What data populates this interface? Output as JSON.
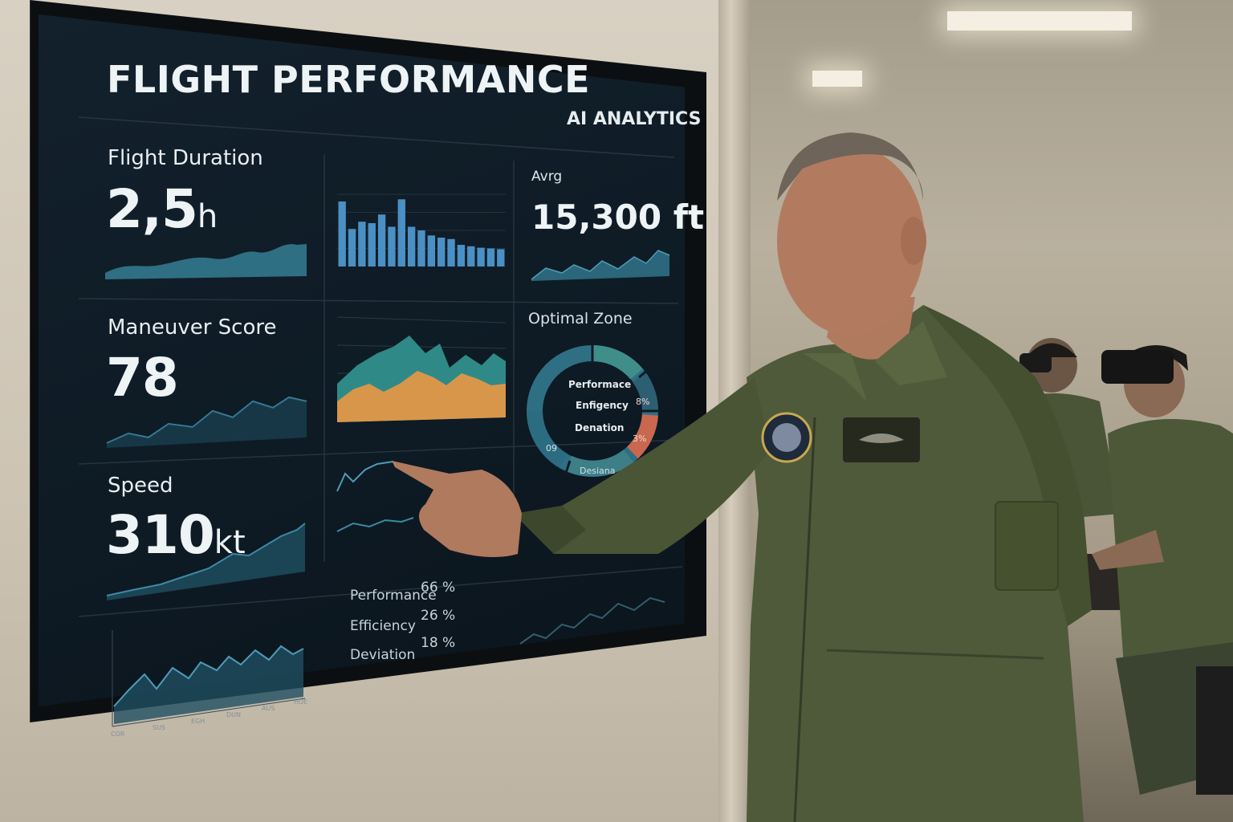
{
  "dashboard": {
    "title": "FLIGHT PERFORMANCE",
    "subtitle": "AI ANALYTICS",
    "flight_duration": {
      "label": "Flight Duration",
      "value": "2,5",
      "unit": "h"
    },
    "maneuver_score": {
      "label": "Maneuver Score",
      "value": "78"
    },
    "speed": {
      "label": "Speed",
      "value": "310",
      "unit": "kt"
    },
    "altitude": {
      "label": "Avrg",
      "value": "15,300 ft"
    },
    "zone": {
      "label": "Optimal Zone",
      "donut_text": [
        "Performace",
        "Enfigency",
        "Denation"
      ],
      "donut_bottom": "Desiana",
      "pct_left": "09",
      "pct_right_top": "8%",
      "pct_right_bottom": "3%"
    },
    "stats": [
      {
        "label": "Performance",
        "value": "66 %"
      },
      {
        "label": "Efficiency",
        "value": "26 %"
      },
      {
        "label": "Deviation",
        "value": "18 %"
      }
    ],
    "x_ticks": [
      "COR",
      "SUS",
      "EGH",
      "DUN",
      "AUS",
      "HUE"
    ],
    "colors": {
      "teal": "#2f6f84",
      "blue": "#4a90c4",
      "orange": "#d8964a",
      "red": "#c9684e",
      "green": "#3f8e8a"
    }
  },
  "bar_chart": {
    "values": [
      0.9,
      0.52,
      0.62,
      0.6,
      0.72,
      0.55,
      0.93,
      0.55,
      0.5,
      0.43,
      0.4,
      0.38,
      0.3,
      0.28,
      0.26,
      0.25,
      0.24
    ]
  }
}
